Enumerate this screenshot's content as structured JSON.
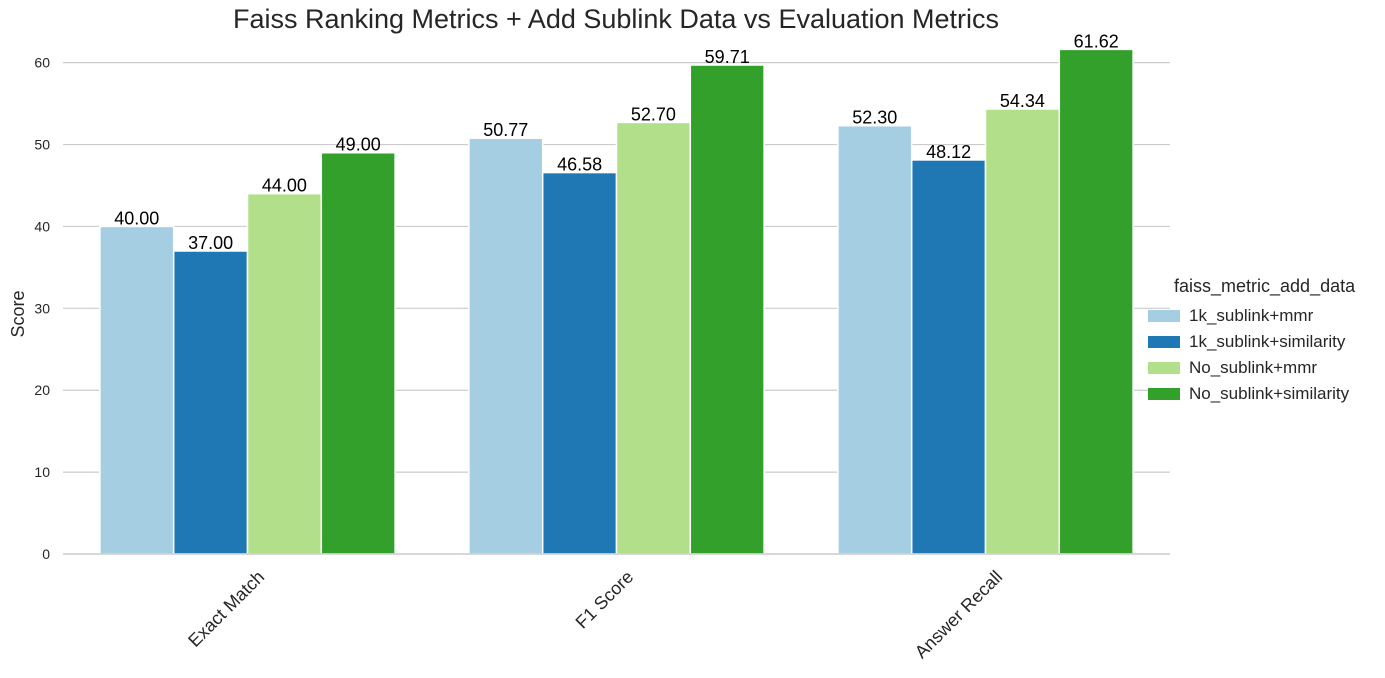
{
  "chart_data": {
    "type": "bar",
    "title": "Faiss Ranking Metrics + Add Sublink Data vs Evaluation Metrics",
    "xlabel": "",
    "ylabel": "Score",
    "ylim": [
      0,
      63.5
    ],
    "yticks": [
      0,
      10,
      20,
      30,
      40,
      50,
      60
    ],
    "categories": [
      "Exact Match",
      "F1 Score",
      "Answer Recall"
    ],
    "legend_title": "faiss_metric_add_data",
    "legend_position": "center-right",
    "grid": "horizontal",
    "series": [
      {
        "name": "1k_sublink+mmr",
        "color": "#a6cee3",
        "values": [
          40.0,
          50.77,
          52.3
        ],
        "labels": [
          "40.00",
          "50.77",
          "52.30"
        ]
      },
      {
        "name": "1k_sublink+similarity",
        "color": "#1f78b4",
        "values": [
          37.0,
          46.58,
          48.12
        ],
        "labels": [
          "37.00",
          "46.58",
          "48.12"
        ]
      },
      {
        "name": "No_sublink+mmr",
        "color": "#b2df8a",
        "values": [
          44.0,
          52.7,
          54.34
        ],
        "labels": [
          "44.00",
          "52.70",
          "54.34"
        ]
      },
      {
        "name": "No_sublink+similarity",
        "color": "#33a02c",
        "values": [
          49.0,
          59.71,
          61.62
        ],
        "labels": [
          "49.00",
          "59.71",
          "61.62"
        ]
      }
    ]
  }
}
